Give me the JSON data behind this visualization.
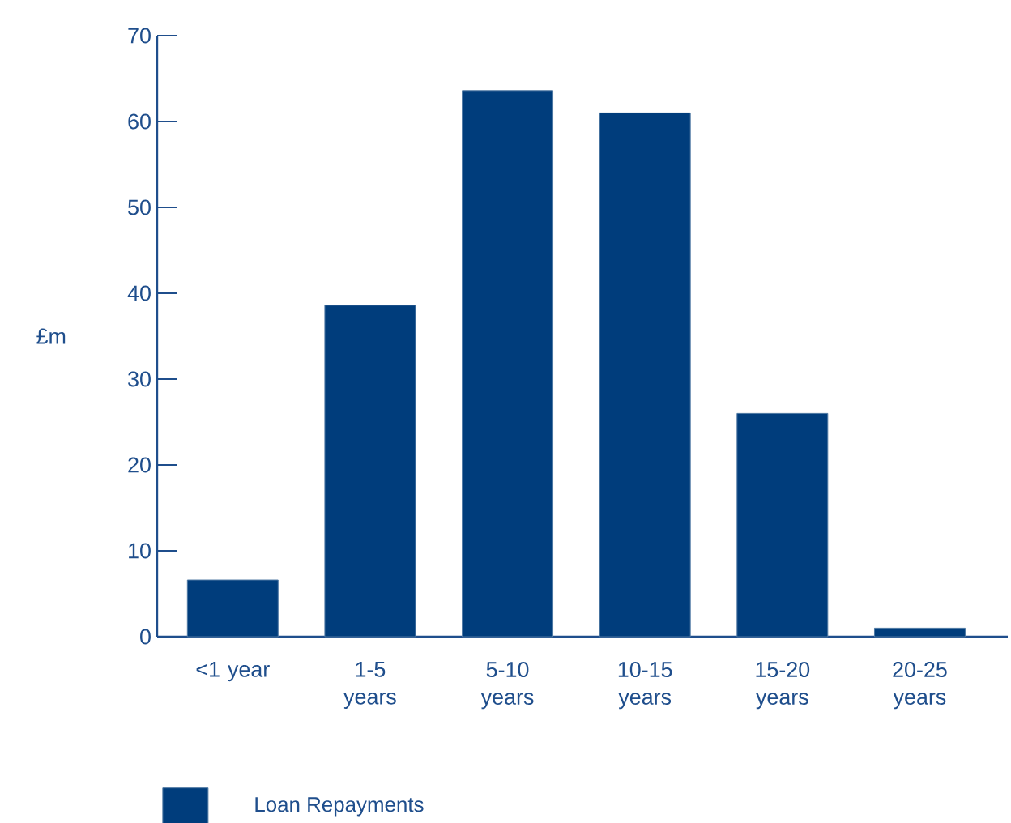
{
  "chart_data": {
    "type": "bar",
    "ylabel": "£m",
    "categories": [
      "<1 year",
      "1-5 years",
      "5-10 years",
      "10-15 years",
      "15-20 years",
      "20-25 years"
    ],
    "series": [
      {
        "name": "Loan Repayments",
        "color": "#003d7c",
        "values": [
          6.6,
          38.6,
          63.6,
          61.0,
          26.0,
          1.0
        ]
      }
    ],
    "ylim": [
      0,
      70
    ],
    "yticks": [
      0,
      10,
      20,
      30,
      40,
      50,
      60,
      70
    ],
    "legend": "bottom left"
  }
}
